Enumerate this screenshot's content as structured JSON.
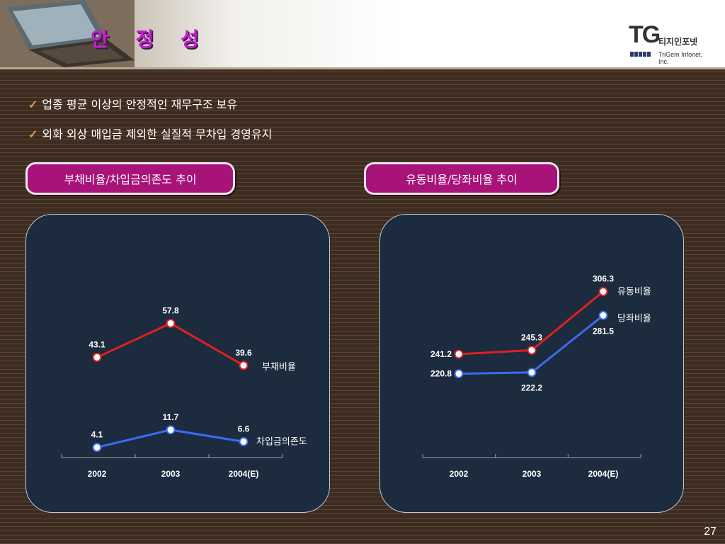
{
  "title": "안 정 성",
  "logo": {
    "mark": "TG",
    "korean": "티지인포넷",
    "english": "TriGem Infonet, Inc."
  },
  "bullets": [
    "업종 평균 이상의 안정적인 재무구조 보유",
    "외화 외상 매입금 제외한 실질적 무차입 경영유지"
  ],
  "page_number": "27",
  "colors": {
    "red_series": "#e02020",
    "blue_series": "#3a6cf0",
    "pill": "#a8137a",
    "title": "#c61ecf"
  },
  "chart_data": [
    {
      "type": "line",
      "title": "부채비율/차입금의존도 추이",
      "categories": [
        "2002",
        "2003",
        "2004(E)"
      ],
      "series": [
        {
          "name": "부채비율",
          "values": [
            43.1,
            57.8,
            39.6
          ],
          "labels": [
            "43.1",
            "57.8",
            "39.6"
          ],
          "color": "#e02020"
        },
        {
          "name": "차입금의존도",
          "values": [
            4.1,
            11.7,
            6.6
          ],
          "labels": [
            "4.1",
            "11.7",
            "6.6"
          ],
          "color": "#3a6cf0"
        }
      ],
      "ylim": [
        0,
        65
      ],
      "grid": false
    },
    {
      "type": "line",
      "title": "유동비율/당좌비율 추이",
      "categories": [
        "2002",
        "2003",
        "2004(E)"
      ],
      "series": [
        {
          "name": "유동비율",
          "values": [
            241.2,
            245.3,
            306.3
          ],
          "labels": [
            "241.2",
            "245.3",
            "306.3"
          ],
          "color": "#e02020"
        },
        {
          "name": "당좌비율",
          "values": [
            220.8,
            222.2,
            281.5
          ],
          "labels": [
            "220.8",
            "222.2",
            "281.5"
          ],
          "color": "#3a6cf0"
        }
      ],
      "ylim": [
        180,
        320
      ],
      "grid": false
    }
  ]
}
